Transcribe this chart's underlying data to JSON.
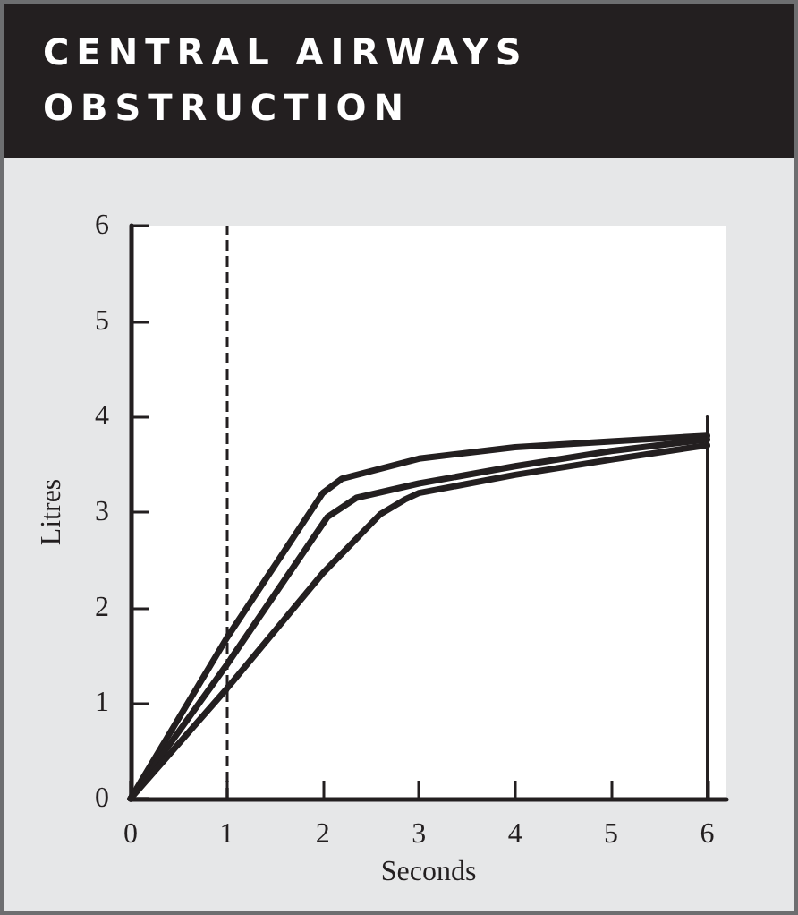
{
  "chart_data": {
    "type": "line",
    "title": "CENTRAL AIRWAYS OBSTRUCTION",
    "xlabel": "Seconds",
    "ylabel": "Litres",
    "xlim": [
      0,
      6.2
    ],
    "ylim": [
      0,
      6
    ],
    "xticks": [
      0,
      1,
      2,
      3,
      4,
      5,
      6
    ],
    "yticks": [
      0,
      1,
      2,
      3,
      4,
      5,
      6
    ],
    "grid": false,
    "marker": "none",
    "line_style": "solid",
    "series": [
      {
        "color": "#231f20",
        "x": [
          0,
          1,
          2,
          2.2,
          3,
          4,
          5,
          6
        ],
        "values": [
          0,
          1.68,
          3.2,
          3.35,
          3.56,
          3.68,
          3.74,
          3.8
        ]
      },
      {
        "color": "#231f20",
        "x": [
          0,
          1,
          2.05,
          2.35,
          3,
          4,
          5,
          6
        ],
        "values": [
          0,
          1.4,
          2.95,
          3.15,
          3.3,
          3.48,
          3.64,
          3.76
        ]
      },
      {
        "color": "#231f20",
        "x": [
          0,
          1,
          2,
          2.6,
          2.85,
          3,
          4,
          5,
          6
        ],
        "values": [
          0,
          1.15,
          2.36,
          2.98,
          3.13,
          3.2,
          3.39,
          3.55,
          3.7
        ]
      },
      {
        "color": "#231f20",
        "x": [
          6,
          6
        ],
        "values": [
          0,
          4
        ]
      }
    ],
    "ref_lines": [
      {
        "axis": "x",
        "value": 1,
        "color": "#231f20",
        "line_style": "dashed"
      }
    ]
  }
}
